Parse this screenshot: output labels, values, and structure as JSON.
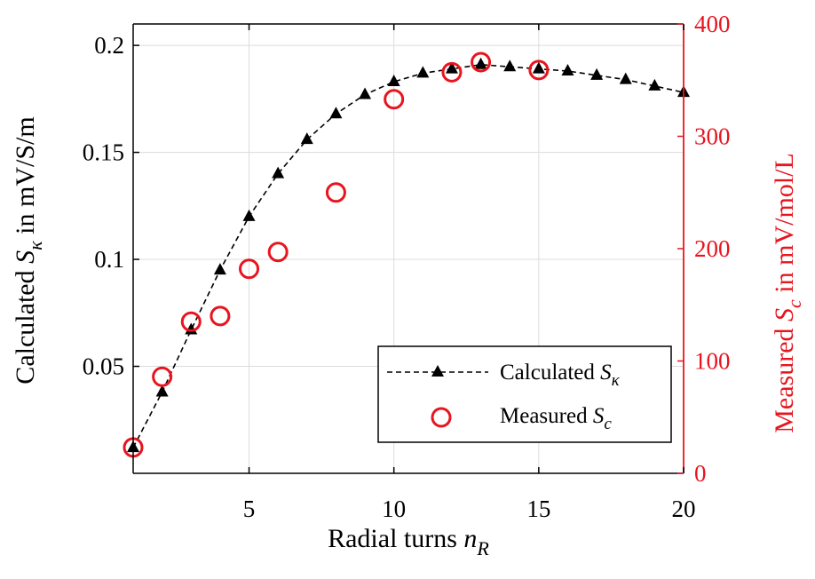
{
  "chart_data": {
    "type": "scatter",
    "xlabel": {
      "text": "Radial turns ",
      "var": "n",
      "sub": "R"
    },
    "ylabel_left": {
      "pre": "Calculated ",
      "var": "S",
      "sub": "κ",
      "post": " in mV/S/m"
    },
    "ylabel_right": {
      "pre": "Measured ",
      "var": "S",
      "sub": "c",
      "post": " in mV/mol/L"
    },
    "xlim": [
      1,
      20
    ],
    "ylim_left": [
      0,
      0.21
    ],
    "ylim_right": [
      0,
      400
    ],
    "xticks": [
      5,
      10,
      15,
      20
    ],
    "xtick_labels": [
      "5",
      "10",
      "15",
      "20"
    ],
    "yticks_left": [
      0.05,
      0.1,
      0.15,
      0.2
    ],
    "ytick_labels_left": [
      "0.05",
      "0.1",
      "0.15",
      "0.2"
    ],
    "yticks_right": [
      0,
      100,
      200,
      300,
      400
    ],
    "ytick_labels_right": [
      "0",
      "100",
      "200",
      "300",
      "400"
    ],
    "grid": true,
    "legend_position": "bottom-right",
    "series": [
      {
        "name": "Calculated S_κ",
        "legend_pre": "Calculated ",
        "legend_var": "S",
        "legend_sub": "κ",
        "axis": "left",
        "style": "dashed-line-triangle",
        "color": "#000000",
        "x": [
          1,
          2,
          3,
          4,
          5,
          6,
          7,
          8,
          9,
          10,
          11,
          12,
          13,
          14,
          15,
          16,
          17,
          18,
          19,
          20
        ],
        "y": [
          0.012,
          0.038,
          0.067,
          0.095,
          0.12,
          0.14,
          0.156,
          0.168,
          0.177,
          0.183,
          0.187,
          0.189,
          0.191,
          0.19,
          0.189,
          0.188,
          0.186,
          0.184,
          0.181,
          0.178
        ]
      },
      {
        "name": "Measured S_c",
        "legend_pre": "Measured ",
        "legend_var": "S",
        "legend_sub": "c",
        "axis": "right",
        "style": "open-circle",
        "color": "#e8141e",
        "x": [
          1,
          2,
          3,
          4,
          5,
          6,
          8,
          10,
          12,
          13,
          15
        ],
        "y": [
          23,
          86,
          135,
          140,
          182,
          197,
          250,
          333,
          357,
          366,
          359
        ]
      }
    ],
    "colors": {
      "axis_left": "#000000",
      "axis_right": "#e8141e",
      "grid": "#dcdcdc"
    }
  }
}
